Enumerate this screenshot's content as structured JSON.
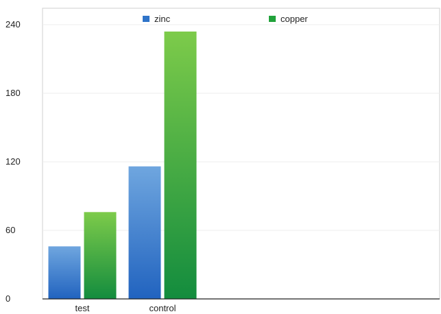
{
  "chart_data": {
    "type": "bar",
    "title": "",
    "xlabel": "",
    "ylabel": "",
    "categories": [
      "test",
      "control"
    ],
    "series": [
      {
        "name": "zinc",
        "values": [
          46,
          116
        ],
        "color": "#3a7fd0"
      },
      {
        "name": "copper",
        "values": [
          76,
          234
        ],
        "color": "#2fa63a"
      }
    ],
    "ylim": [
      0,
      240
    ],
    "yticks": [
      0,
      60,
      120,
      180,
      240
    ],
    "grid": true,
    "legend_position": "top"
  }
}
